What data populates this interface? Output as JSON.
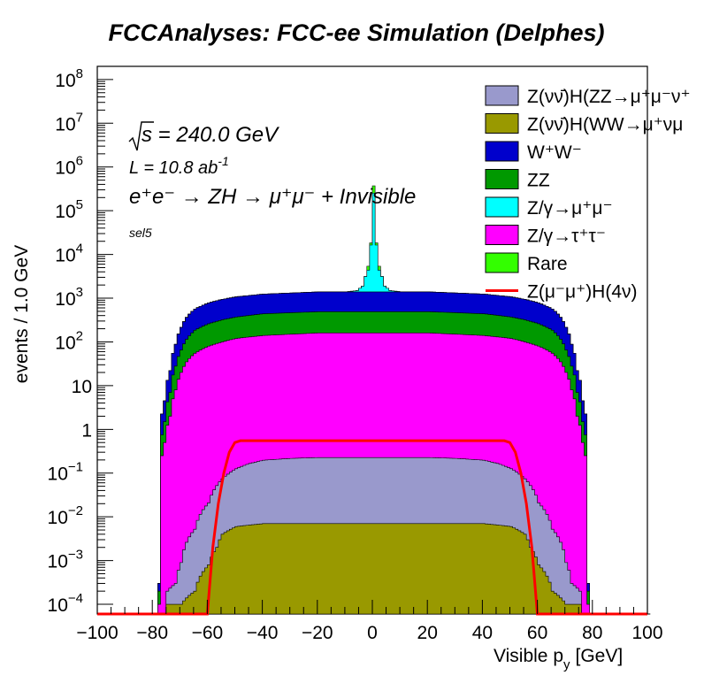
{
  "chart_data": {
    "type": "area",
    "title": "FCCAnalyses: FCC-ee Simulation (Delphes)",
    "xlabel": "Visible p",
    "xlabel_sub": "y",
    "xlabel_unit": "[GeV]",
    "ylabel": "events / 1.0 GeV",
    "xlim": [
      -100,
      100
    ],
    "ylim": [
      6e-05,
      200000000.0
    ],
    "yscale": "log",
    "stacked": true,
    "grid": false,
    "x_ticks": [
      "−100",
      "−80",
      "−60",
      "−40",
      "−20",
      "0",
      "20",
      "40",
      "60",
      "80",
      "100"
    ],
    "y_ticks": [
      {
        "base": "10",
        "exp": "8",
        "value": 100000000.0
      },
      {
        "base": "10",
        "exp": "7",
        "value": 10000000.0
      },
      {
        "base": "10",
        "exp": "6",
        "value": 1000000.0
      },
      {
        "base": "10",
        "exp": "5",
        "value": 100000.0
      },
      {
        "base": "10",
        "exp": "4",
        "value": 10000.0
      },
      {
        "base": "10",
        "exp": "3",
        "value": 1000.0
      },
      {
        "base": "10",
        "exp": "2",
        "value": 100.0
      },
      {
        "base": "10",
        "exp": "",
        "value": 10
      },
      {
        "base": "1",
        "exp": "",
        "value": 1
      },
      {
        "base": "10",
        "exp": "−1",
        "value": 0.1
      },
      {
        "base": "10",
        "exp": "−2",
        "value": 0.01
      },
      {
        "base": "10",
        "exp": "−3",
        "value": 0.001
      },
      {
        "base": "10",
        "exp": "−4",
        "value": 0.0001
      }
    ],
    "annotations": {
      "sqrt_s": "s = 240.0 GeV",
      "lumi": "L = 10.8 ab",
      "lumi_exp": "-1",
      "process": "e⁺e⁻ → ZH → μ⁺μ⁻ + Invisible",
      "selection": "sel5"
    },
    "legend": {
      "placement": "top-right",
      "entries": [
        {
          "label": "Z(νν̄)H(ZZ→μ⁺μ⁻ν⁺",
          "color": "#9999cc"
        },
        {
          "label": "Z(νν̄)H(WW→μ⁺νμ",
          "color": "#999900"
        },
        {
          "label": "W⁺W⁻",
          "color": "#0000cc"
        },
        {
          "label": "ZZ",
          "color": "#009900"
        },
        {
          "label": "Z/γ→μ⁺μ⁻",
          "color": "#00ffff"
        },
        {
          "label": "Z/γ→τ⁺τ⁻",
          "color": "#ff00ff"
        },
        {
          "label": "Rare",
          "color": "#33ff00"
        },
        {
          "label": "Z(μ⁻μ⁺)H(4ν)",
          "color": "#ff0000",
          "line": true
        }
      ]
    },
    "series": [
      {
        "color": "#999900",
        "x": [
          -75,
          -70,
          -65,
          -60,
          -57,
          -55,
          -50,
          -40,
          -20,
          0,
          20,
          40,
          50,
          55,
          57,
          60,
          65,
          70,
          75
        ],
        "y": [
          0.0001,
          0.0001,
          0.0002,
          0.0008,
          0.002,
          0.004,
          0.006,
          0.007,
          0.007,
          0.007,
          0.007,
          0.007,
          0.006,
          0.004,
          0.002,
          0.0008,
          0.0002,
          0.0001,
          0.0001
        ]
      },
      {
        "color": "#9999cc",
        "x": [
          -75,
          -72,
          -70,
          -65,
          -60,
          -55,
          -50,
          -45,
          -40,
          -30,
          -20,
          0,
          20,
          30,
          40,
          45,
          50,
          55,
          60,
          65,
          70,
          72,
          75
        ],
        "y": [
          0.0001,
          0.0002,
          0.0008,
          0.005,
          0.02,
          0.07,
          0.12,
          0.16,
          0.19,
          0.21,
          0.22,
          0.22,
          0.22,
          0.21,
          0.19,
          0.16,
          0.12,
          0.07,
          0.02,
          0.005,
          0.0008,
          0.0002,
          0.0001
        ]
      },
      {
        "color": "#ff00ff",
        "x": [
          -78,
          -76,
          -74,
          -72,
          -70,
          -68,
          -65,
          -60,
          -55,
          -50,
          -40,
          -20,
          0,
          20,
          40,
          50,
          55,
          60,
          65,
          68,
          70,
          72,
          74,
          76,
          78
        ],
        "y": [
          0.0001,
          0.5,
          2,
          8,
          20,
          35,
          55,
          80,
          100,
          120,
          140,
          160,
          160,
          160,
          140,
          120,
          100,
          80,
          55,
          35,
          20,
          8,
          2,
          0.5,
          0.0001
        ]
      },
      {
        "color": "#009900",
        "x": [
          -78,
          -76,
          -74,
          -72,
          -70,
          -68,
          -65,
          -60,
          -55,
          -50,
          -40,
          -20,
          0,
          20,
          40,
          50,
          55,
          60,
          65,
          68,
          70,
          72,
          74,
          76,
          78
        ],
        "y": [
          0.0001,
          1,
          5,
          20,
          45,
          80,
          130,
          180,
          220,
          250,
          300,
          330,
          330,
          330,
          300,
          250,
          220,
          180,
          130,
          80,
          45,
          20,
          5,
          1,
          0.0001
        ]
      },
      {
        "color": "#0000cc",
        "x": [
          -78,
          -76,
          -74,
          -72,
          -70,
          -68,
          -65,
          -60,
          -55,
          -50,
          -40,
          -20,
          0,
          20,
          40,
          50,
          55,
          60,
          65,
          68,
          70,
          72,
          74,
          76,
          78
        ],
        "y": [
          0.0001,
          3,
          15,
          60,
          150,
          250,
          380,
          520,
          620,
          700,
          800,
          900,
          900,
          900,
          800,
          700,
          620,
          520,
          380,
          250,
          150,
          60,
          15,
          3,
          0.0001
        ]
      },
      {
        "color": "#00ffff",
        "x": [
          -10,
          -6,
          -4,
          -2,
          -1,
          0,
          1,
          2,
          4,
          6,
          10
        ],
        "y": [
          0,
          100,
          500,
          3000,
          15000,
          250000,
          15000,
          3000,
          500,
          100,
          0
        ]
      },
      {
        "color": "#33ff00",
        "x": [
          -3,
          -1,
          0,
          1,
          3
        ],
        "y": [
          0,
          2000,
          120000,
          2000,
          0
        ]
      }
    ],
    "signal": {
      "color": "#ff0000",
      "x": [
        -100,
        -60,
        -58,
        -56,
        -54,
        -52,
        -50,
        -48,
        -40,
        0,
        40,
        48,
        50,
        52,
        54,
        56,
        58,
        60,
        100
      ],
      "y": [
        6e-05,
        6e-05,
        0.002,
        0.02,
        0.1,
        0.3,
        0.5,
        0.55,
        0.55,
        0.55,
        0.55,
        0.55,
        0.5,
        0.3,
        0.1,
        0.02,
        0.002,
        6e-05,
        6e-05
      ]
    }
  }
}
